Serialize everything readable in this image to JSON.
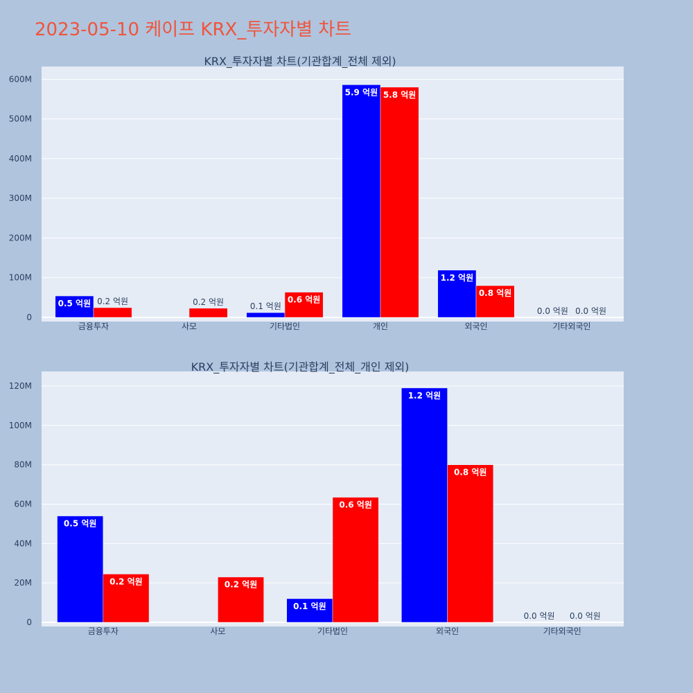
{
  "page_title": "2023-05-10 케이프 KRX_투자자별 차트",
  "colors": {
    "background": "#B0C4DE",
    "plot_bg": "#E5ECF6",
    "buy": "#0000FF",
    "sell": "#FF0000",
    "title": "#EF553B"
  },
  "chart_data": [
    {
      "type": "bar",
      "title": "KRX_투자자별 차트(기관합계_전체 제외)",
      "categories": [
        "금융투자",
        "사모",
        "기타법인",
        "개인",
        "외국인",
        "기타외국인"
      ],
      "series": [
        {
          "color": "#0000FF",
          "values": [
            54000000,
            0,
            12000000,
            586000000,
            119000000,
            0
          ],
          "labels": [
            "0.5 억원",
            "",
            "0.1 억원",
            "5.9 억원",
            "1.2 억원",
            "0.0 억원"
          ]
        },
        {
          "color": "#FF0000",
          "values": [
            24500000,
            23000000,
            63500000,
            580000000,
            80000000,
            0
          ],
          "labels": [
            "0.2 억원",
            "0.2 억원",
            "0.6 억원",
            "5.8 억원",
            "0.8 억원",
            "0.0 억원"
          ]
        }
      ],
      "ylim": [
        0,
        625000000
      ],
      "yticks": [
        0,
        100000000,
        200000000,
        300000000,
        400000000,
        500000000,
        600000000
      ],
      "ytick_labels": [
        "0",
        "100M",
        "200M",
        "300M",
        "400M",
        "500M",
        "600M"
      ],
      "grid": true
    },
    {
      "type": "bar",
      "title": "KRX_투자자별 차트(기관합계_전체_개인 제외)",
      "categories": [
        "금융투자",
        "사모",
        "기타법인",
        "외국인",
        "기타외국인"
      ],
      "series": [
        {
          "color": "#0000FF",
          "values": [
            54000000,
            0,
            12000000,
            119000000,
            0
          ],
          "labels": [
            "0.5 억원",
            "",
            "0.1 억원",
            "1.2 억원",
            "0.0 억원"
          ]
        },
        {
          "color": "#FF0000",
          "values": [
            24500000,
            23000000,
            63500000,
            80000000,
            0
          ],
          "labels": [
            "0.2 억원",
            "0.2 억원",
            "0.6 억원",
            "0.8 억원",
            "0.0 억원"
          ]
        }
      ],
      "ylim": [
        0,
        126000000
      ],
      "yticks": [
        0,
        20000000,
        40000000,
        60000000,
        80000000,
        100000000,
        120000000
      ],
      "ytick_labels": [
        "0",
        "20M",
        "40M",
        "60M",
        "80M",
        "100M",
        "120M"
      ],
      "grid": true
    }
  ]
}
